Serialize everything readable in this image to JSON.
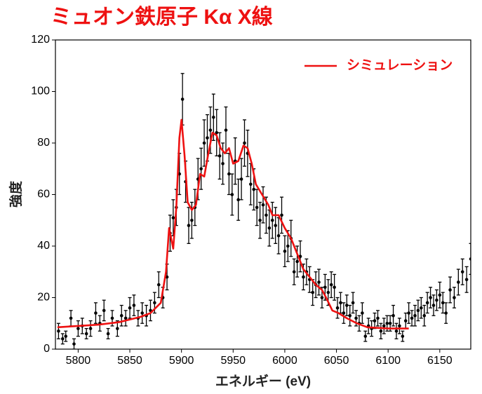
{
  "chart_data": {
    "type": "scatter",
    "title": "ミュオン鉄原子 Kα X線",
    "xlabel": "エネルギー (eV)",
    "ylabel": "強度",
    "xlim": [
      5778,
      6180
    ],
    "ylim": [
      0,
      120
    ],
    "xticks": [
      5800,
      5850,
      5900,
      5950,
      6000,
      6050,
      6100,
      6150
    ],
    "yticks": [
      0,
      20,
      40,
      60,
      80,
      100,
      120
    ],
    "legend": "upper right",
    "series": [
      {
        "type": "errorbar",
        "color": "#000000",
        "x": [
          5781,
          5785,
          5788,
          5793,
          5796,
          5800,
          5804,
          5808,
          5812,
          5817,
          5821,
          5825,
          5829,
          5833,
          5838,
          5842,
          5846,
          5850,
          5854,
          5858,
          5862,
          5866,
          5870,
          5874,
          5878,
          5882,
          5886,
          5889,
          5892,
          5895,
          5898,
          5901,
          5904,
          5907,
          5910,
          5913,
          5916,
          5919,
          5922,
          5925,
          5928,
          5931,
          5934,
          5937,
          5940,
          5943,
          5946,
          5949,
          5952,
          5955,
          5958,
          5961,
          5964,
          5967,
          5970,
          5973,
          5976,
          5979,
          5982,
          5985,
          5988,
          5991,
          5994,
          5997,
          6000,
          6003,
          6006,
          6009,
          6012,
          6015,
          6018,
          6021,
          6024,
          6027,
          6030,
          6033,
          6036,
          6039,
          6042,
          6045,
          6048,
          6051,
          6054,
          6057,
          6060,
          6063,
          6066,
          6069,
          6072,
          6075,
          6078,
          6081,
          6084,
          6087,
          6090,
          6093,
          6096,
          6099,
          6102,
          6105,
          6108,
          6111,
          6114,
          6117,
          6120,
          6123,
          6126,
          6129,
          6132,
          6135,
          6138,
          6141,
          6144,
          6147,
          6150,
          6153,
          6156,
          6160,
          6164,
          6168,
          6172,
          6176,
          6180
        ],
        "values": [
          7,
          4,
          5,
          12,
          2,
          8,
          9,
          6,
          8,
          14,
          10,
          15,
          6,
          12,
          8,
          13,
          12,
          16,
          17,
          12,
          14,
          13,
          15,
          18,
          25,
          20,
          28,
          45,
          51,
          55,
          68,
          97,
          65,
          48,
          50,
          55,
          66,
          70,
          80,
          82,
          85,
          90,
          84,
          75,
          72,
          85,
          68,
          60,
          73,
          58,
          66,
          80,
          76,
          64,
          62,
          55,
          50,
          56,
          52,
          47,
          50,
          48,
          44,
          52,
          38,
          40,
          43,
          30,
          34,
          36,
          28,
          30,
          27,
          22,
          25,
          26,
          20,
          24,
          22,
          25,
          24,
          16,
          18,
          14,
          17,
          13,
          18,
          12,
          10,
          14,
          5,
          9,
          8,
          11,
          12,
          7,
          9,
          10,
          10,
          13,
          7,
          9,
          5,
          11,
          14,
          12,
          13,
          15,
          16,
          13,
          18,
          20,
          17,
          19,
          21,
          18,
          14,
          23,
          20,
          26,
          30,
          27,
          35
        ],
        "errors": [
          3,
          2,
          2,
          3,
          2,
          3,
          3,
          2,
          3,
          4,
          3,
          4,
          2,
          3,
          3,
          4,
          3,
          4,
          4,
          3,
          4,
          4,
          4,
          4,
          5,
          4,
          5,
          7,
          7,
          7,
          8,
          10,
          8,
          7,
          7,
          7,
          8,
          8,
          9,
          9,
          9,
          9,
          9,
          9,
          8,
          9,
          8,
          8,
          9,
          8,
          8,
          9,
          9,
          8,
          8,
          7,
          7,
          7,
          7,
          7,
          7,
          7,
          7,
          7,
          6,
          6,
          7,
          5,
          6,
          6,
          5,
          5,
          5,
          5,
          5,
          5,
          4,
          5,
          5,
          5,
          5,
          4,
          4,
          4,
          4,
          4,
          4,
          3,
          3,
          4,
          2,
          3,
          3,
          3,
          3,
          3,
          3,
          3,
          3,
          4,
          3,
          3,
          2,
          3,
          4,
          3,
          4,
          4,
          4,
          4,
          4,
          4,
          4,
          4,
          5,
          4,
          4,
          5,
          4,
          5,
          5,
          5,
          6
        ]
      },
      {
        "type": "line",
        "name": "シミュレーション",
        "color": "#ee1111",
        "x": [
          5780,
          5800,
          5820,
          5840,
          5860,
          5870,
          5880,
          5885,
          5888,
          5892,
          5895,
          5898,
          5900,
          5903,
          5906,
          5910,
          5914,
          5918,
          5922,
          5926,
          5930,
          5934,
          5938,
          5942,
          5946,
          5950,
          5955,
          5960,
          5964,
          5968,
          5972,
          5978,
          5984,
          5988,
          5994,
          6000,
          6006,
          6012,
          6018,
          6024,
          6030,
          6036,
          6040,
          6046,
          6052,
          6060,
          6070,
          6080,
          6100,
          6120
        ],
        "values": [
          8.5,
          9,
          9.5,
          10.5,
          12.5,
          14,
          18,
          30,
          47,
          39,
          55,
          82,
          89,
          75,
          57,
          54,
          56,
          68,
          67,
          76,
          84,
          83,
          78,
          76,
          78,
          72,
          73,
          79,
          78,
          72,
          64,
          60,
          56,
          52,
          52,
          47,
          43,
          37,
          31,
          28,
          25,
          23,
          20,
          15,
          14,
          12,
          10,
          8.5,
          8,
          8
        ]
      }
    ]
  }
}
